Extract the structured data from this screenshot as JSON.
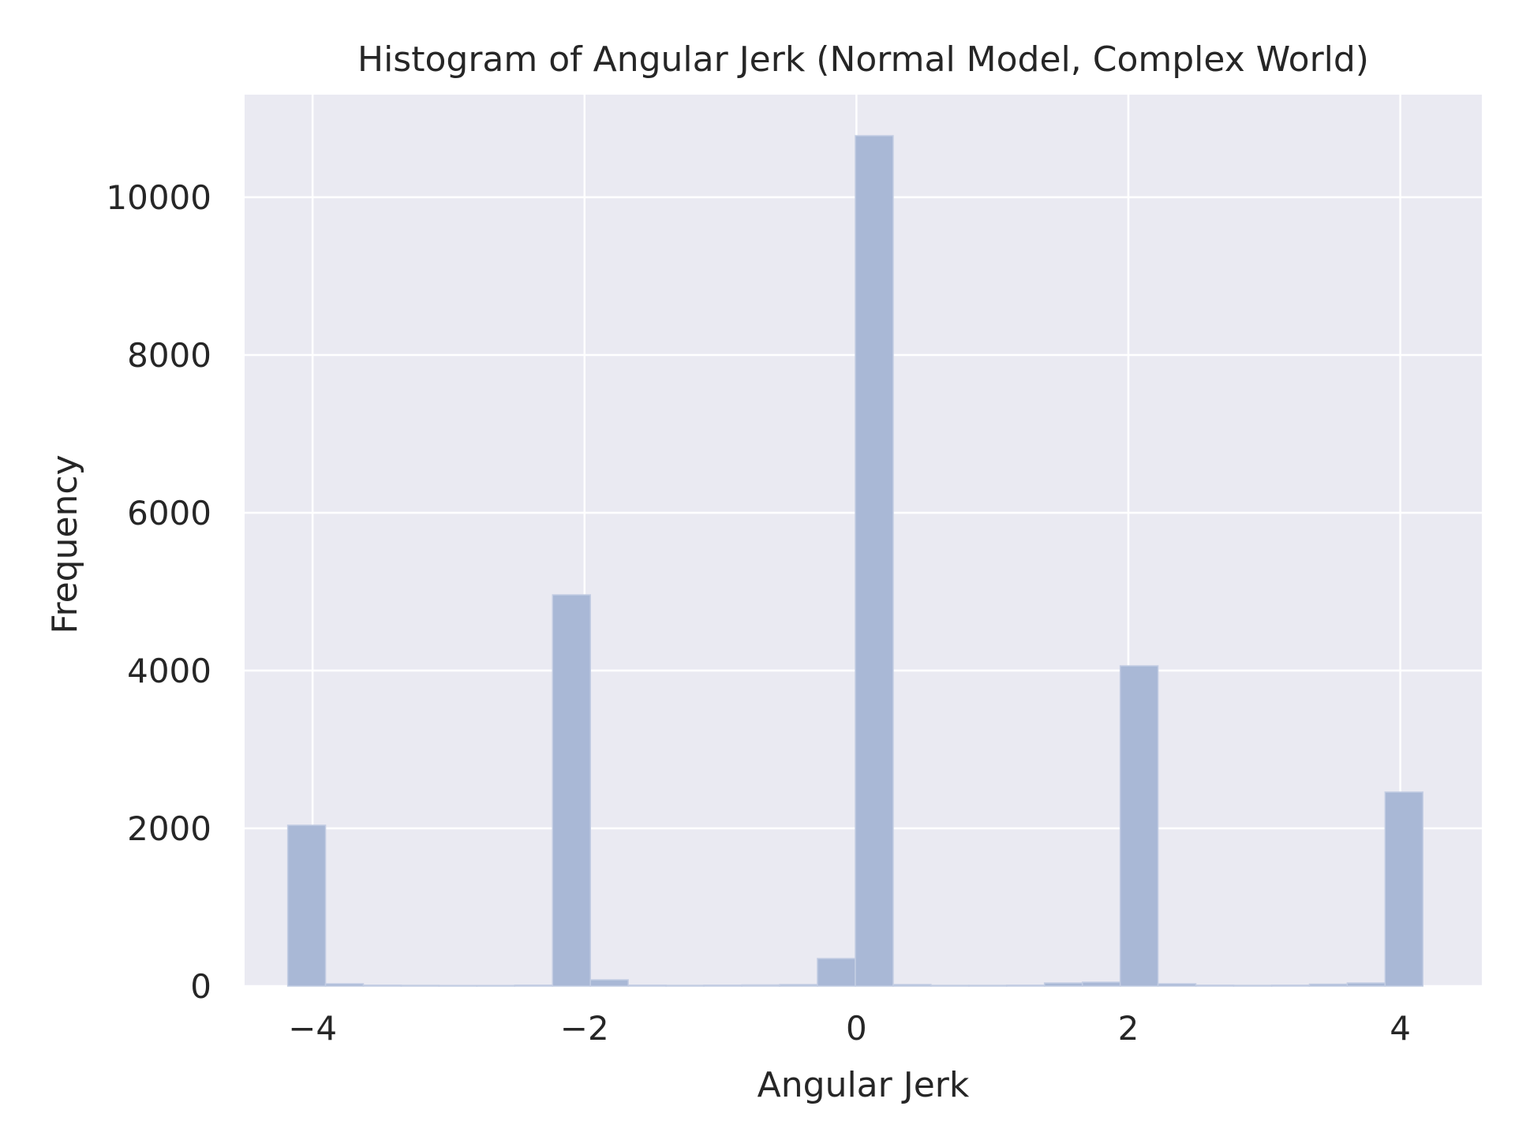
{
  "chart_data": {
    "type": "bar",
    "title": "Histogram of Angular Jerk (Normal Model, Complex World)",
    "xlabel": "Angular Jerk",
    "ylabel": "Frequency",
    "xlim": [
      -4.5,
      4.6
    ],
    "ylim": [
      0,
      11300
    ],
    "xticks": [
      -4,
      -2,
      0,
      2,
      4
    ],
    "xtick_labels": [
      "−4",
      "−2",
      "0",
      "2",
      "4"
    ],
    "yticks": [
      0,
      2000,
      4000,
      6000,
      8000,
      10000
    ],
    "ytick_labels": [
      "0",
      "2000",
      "4000",
      "6000",
      "8000",
      "10000"
    ],
    "grid": true,
    "bin_width": 0.2783,
    "bins": [
      {
        "x0": -4.183,
        "value": 2040
      },
      {
        "x0": -3.905,
        "value": 30
      },
      {
        "x0": -3.627,
        "value": 12
      },
      {
        "x0": -3.348,
        "value": 10
      },
      {
        "x0": -3.07,
        "value": 8
      },
      {
        "x0": -2.792,
        "value": 8
      },
      {
        "x0": -2.513,
        "value": 12
      },
      {
        "x0": -2.235,
        "value": 4960
      },
      {
        "x0": -1.957,
        "value": 80
      },
      {
        "x0": -1.678,
        "value": 12
      },
      {
        "x0": -1.4,
        "value": 10
      },
      {
        "x0": -1.122,
        "value": 12
      },
      {
        "x0": -0.843,
        "value": 15
      },
      {
        "x0": -0.565,
        "value": 20
      },
      {
        "x0": -0.287,
        "value": 350
      },
      {
        "x0": -0.008,
        "value": 10780
      },
      {
        "x0": 0.27,
        "value": 20
      },
      {
        "x0": 0.548,
        "value": 10
      },
      {
        "x0": 0.827,
        "value": 10
      },
      {
        "x0": 1.105,
        "value": 12
      },
      {
        "x0": 1.383,
        "value": 40
      },
      {
        "x0": 1.662,
        "value": 50
      },
      {
        "x0": 1.94,
        "value": 4060
      },
      {
        "x0": 2.218,
        "value": 30
      },
      {
        "x0": 2.497,
        "value": 12
      },
      {
        "x0": 2.775,
        "value": 10
      },
      {
        "x0": 3.053,
        "value": 12
      },
      {
        "x0": 3.332,
        "value": 25
      },
      {
        "x0": 3.61,
        "value": 40
      },
      {
        "x0": 3.888,
        "value": 2460
      }
    ],
    "colors": {
      "bar_fill": "#a9b8d6",
      "bar_edge": "#c3cde3",
      "plot_background": "#eaeaf2",
      "grid": "#ffffff",
      "text": "#262626"
    }
  }
}
